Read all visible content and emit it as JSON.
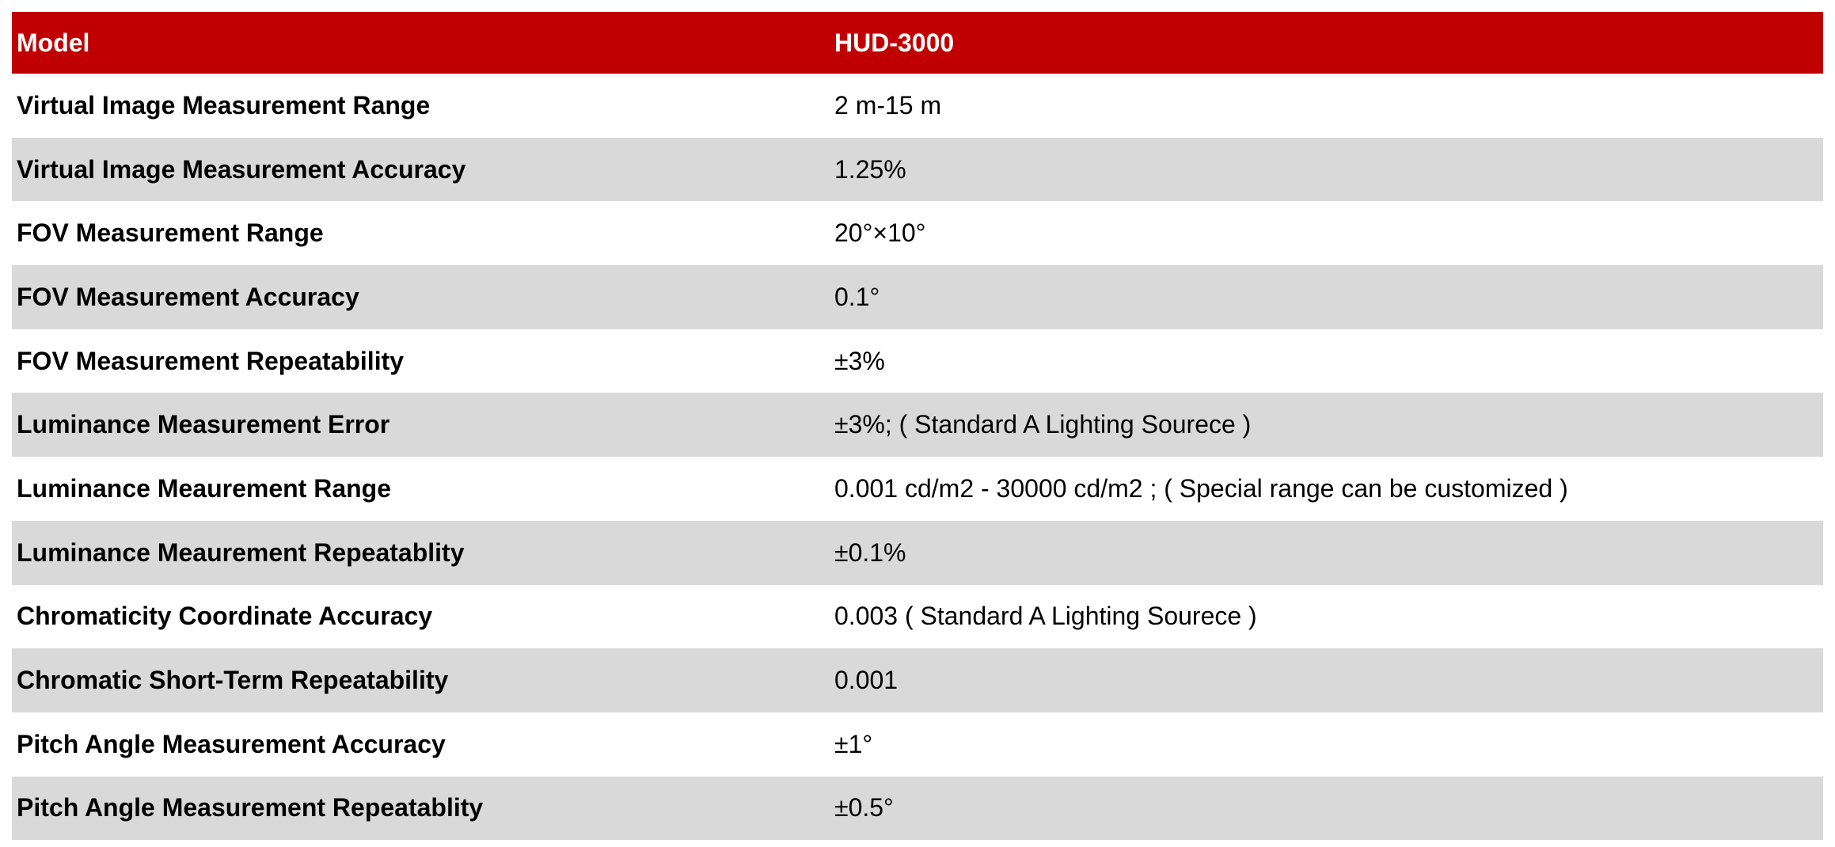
{
  "colors": {
    "header_bg": "#c00000",
    "alt_row_bg": "#d9d9d9"
  },
  "table": {
    "header": {
      "label": "Model",
      "value": "HUD-3000"
    },
    "rows": [
      {
        "label": "Virtual Image Measurement Range",
        "value": "2 m-15 m"
      },
      {
        "label": "Virtual Image Measurement Accuracy",
        "value": "1.25%"
      },
      {
        "label": "FOV Measurement Range",
        "value": "20°×10°"
      },
      {
        "label": "FOV Measurement Accuracy",
        "value": "0.1°"
      },
      {
        "label": "FOV Measurement Repeatability",
        "value": "±3%"
      },
      {
        "label": "Luminance Measurement Error",
        "value": "±3%; ( Standard A Lighting Sourece )"
      },
      {
        "label": "Luminance Meaurement Range",
        "value": "0.001 cd/m2 - 30000 cd/m2 ; ( Special range can be customized )"
      },
      {
        "label": "Luminance Meaurement Repeatablity",
        "value": "±0.1%"
      },
      {
        "label": "Chromaticity  Coordinate Accuracy",
        "value": "0.003 ( Standard A Lighting Sourece )"
      },
      {
        "label": "Chromatic Short-Term Repeatability",
        "value": "0.001"
      },
      {
        "label": "Pitch Angle Measurement Accuracy",
        "value": "±1°"
      },
      {
        "label": "Pitch Angle Measurement Repeatablity",
        "value": "±0.5°"
      }
    ]
  }
}
